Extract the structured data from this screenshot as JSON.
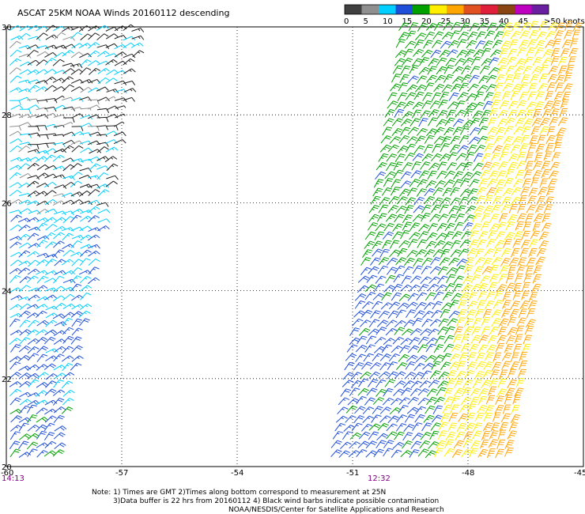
{
  "title": "ASCAT 25KM NOAA Winds 20160112 descending",
  "legend": {
    "ticks": [
      "0",
      "5",
      "10",
      "15",
      "20",
      "25",
      "30",
      "35",
      "40",
      "45"
    ],
    "overflow_label": ">50 knots",
    "colors": [
      "#404040",
      "#8f8f8f",
      "#00cfff",
      "#1f4fd8",
      "#00a000",
      "#ffee00",
      "#ffa500",
      "#e05020",
      "#e0203a",
      "#8b4513",
      "#c000c0",
      "#6a1fa0"
    ]
  },
  "axes": {
    "lon_labels": [
      "-60",
      "-57",
      "-54",
      "-51",
      "-48",
      "-45"
    ],
    "lat_labels": [
      "30",
      "28",
      "26",
      "24",
      "22",
      "20"
    ],
    "lon_range": [
      -60,
      -45
    ],
    "lat_range": [
      20,
      30
    ]
  },
  "pass_times": {
    "left": "14:13",
    "right": "12:32"
  },
  "notes": {
    "line1": "Note: 1) Times are GMT 2)Times along bottom correspond to measurement at 25N",
    "line2": "3)Data buffer is 22 hrs from 20160112 4) Black wind barbs indicate possible contamination",
    "line3": "NOAA/NESDIS/Center for Satellite Applications and Research"
  },
  "wind_swaths": [
    {
      "name": "west swath",
      "bounds_lon": [
        -60,
        -56.5
      ],
      "regions": [
        {
          "lat_range": [
            28.4,
            30
          ],
          "speed_kt": 12,
          "direction_deg": 60
        },
        {
          "lat_range": [
            27.2,
            28.4
          ],
          "speed_kt": 9,
          "direction_deg": 75
        },
        {
          "lat_range": [
            25.6,
            27.2
          ],
          "speed_kt": 12,
          "direction_deg": 60
        },
        {
          "lat_range": [
            23.4,
            25.6
          ],
          "speed_kt": 14,
          "direction_deg": 55
        },
        {
          "lat_range": [
            21.4,
            23.4
          ],
          "speed_kt": 16,
          "direction_deg": 50
        },
        {
          "lat_range": [
            20,
            21.4
          ],
          "speed_kt": 18,
          "direction_deg": 45
        }
      ]
    },
    {
      "name": "east swath",
      "bounds_lon": [
        -51.2,
        -45.1
      ],
      "regions": [
        {
          "zone": "south-west",
          "speed_kt": 18,
          "direction_deg": 40
        },
        {
          "zone": "central",
          "speed_kt": 22,
          "direction_deg": 35
        },
        {
          "zone": "east",
          "speed_kt": 28,
          "direction_deg": 30
        },
        {
          "zone": "north-east",
          "speed_kt": 32,
          "direction_deg": 25
        }
      ]
    }
  ]
}
